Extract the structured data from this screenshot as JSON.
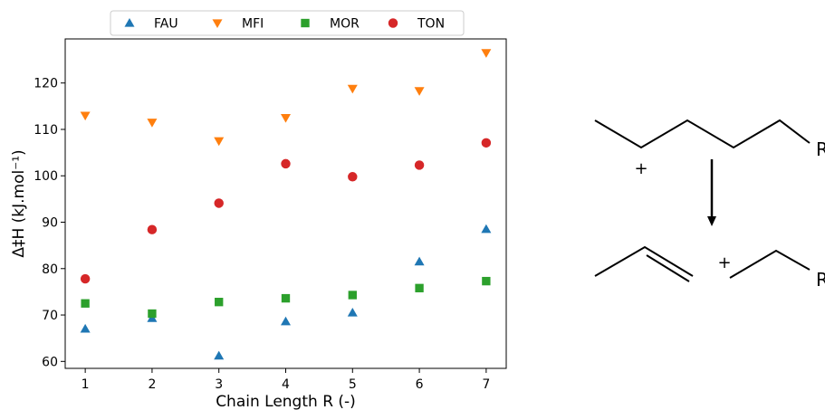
{
  "chart_data": {
    "type": "scatter",
    "x": [
      1,
      2,
      3,
      4,
      5,
      6,
      7
    ],
    "xlabel": "Chain Length R (-)",
    "ylabel": "Δ‡H (kJ.mol⁻¹)",
    "xlim": [
      0.7,
      7.3
    ],
    "ylim": [
      58.5,
      129.5
    ],
    "xticks": [
      1,
      2,
      3,
      4,
      5,
      6,
      7
    ],
    "yticks": [
      60,
      70,
      80,
      90,
      100,
      110,
      120
    ],
    "grid": false,
    "legend_position": "top-center",
    "series": [
      {
        "name": "FAU",
        "marker": "triangle-up",
        "color": "#1f77b4",
        "values": [
          67,
          69.3,
          61.2,
          68.6,
          70.5,
          81.5,
          88.5
        ]
      },
      {
        "name": "MFI",
        "marker": "triangle-down",
        "color": "#ff7f0e",
        "values": [
          113,
          111.5,
          107.5,
          112.5,
          118.8,
          118.3,
          126.5
        ]
      },
      {
        "name": "MOR",
        "marker": "square",
        "color": "#2ca02c",
        "values": [
          72.5,
          70.3,
          72.8,
          73.6,
          74.3,
          75.8,
          77.3
        ]
      },
      {
        "name": "TON",
        "marker": "circle",
        "color": "#d62728",
        "values": [
          77.8,
          88.4,
          94.1,
          102.6,
          99.8,
          102.3,
          107.1
        ]
      }
    ]
  },
  "reaction": {
    "reactant_group": "R",
    "reactant_plus": "+",
    "product_plus": "+",
    "product_group": "R"
  }
}
